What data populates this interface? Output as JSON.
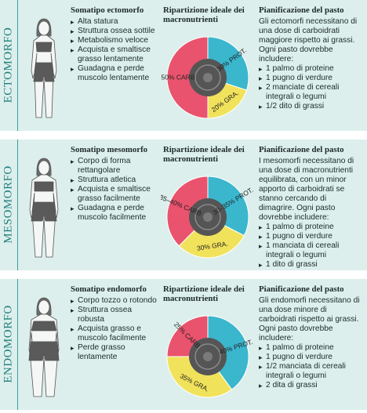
{
  "rows": [
    {
      "side_label": "ECTOMORFO",
      "type_title": "Somatipo ectomorfo",
      "type_bullets": [
        "Alta statura",
        "Struttura ossea sottile",
        "Metabolismo veloce",
        "Acquista e smaltisce grasso lentamente",
        "Guadagna e perde muscolo lentamente"
      ],
      "pie_title": "Ripartizione ideale dei macronutrienti",
      "pie": [
        {
          "label": "30% PROT.",
          "value": 30,
          "color": "#3ab6cd"
        },
        {
          "label": "20% GRA.",
          "value": 20,
          "color": "#f1e25b"
        },
        {
          "label": "50% CARB",
          "value": 50,
          "color": "#e9536d"
        }
      ],
      "plan_title": "Pianificazione del pasto",
      "plan_text": "Gli ectomorfi necessitano di una dose di carboidrati maggiore rispetto ai grassi. Ogni pasto dovrebbe includere:",
      "plan_bullets": [
        "1 palmo di proteine",
        "1 pugno di verdure",
        "2 manciate di cereali integrali o legumi",
        "1/2 dito di grassi"
      ]
    },
    {
      "side_label": "MESOMORFO",
      "type_title": "Somatipo mesomorfo",
      "type_bullets": [
        "Corpo di forma rettangolare",
        "Struttura atletica",
        "Acquista e smaltisce grasso facilmente",
        "Guadagna e perde muscolo facilmente"
      ],
      "pie_title": "Ripartizione ideale dei macronutrienti",
      "pie": [
        {
          "label": "30–35% PROT.",
          "value": 32.5,
          "color": "#3ab6cd"
        },
        {
          "label": "30% GRA.",
          "value": 30,
          "color": "#f1e25b"
        },
        {
          "label": "35–40% CARB",
          "value": 37.5,
          "color": "#e9536d"
        }
      ],
      "plan_title": "Pianificazione del pasto",
      "plan_text": "I mesomorfi necessitano di una dose di macronutrienti equilibrata, con un minor apporto di carboidrati se stanno cercando di dimagrire. Ogni pasto dovrebbe includere:",
      "plan_bullets": [
        "1 palmo di proteine",
        "1 pugno di verdure",
        "1 manciata di cereali integrali o legumi",
        "1 dito di grassi"
      ]
    },
    {
      "side_label": "ENDOMORFO",
      "type_title": "Somatipo endomorfo",
      "type_bullets": [
        "Corpo tozzo o rotondo",
        "Struttura ossea robusta",
        "Acquista grasso e muscolo facilmente",
        "Perde grasso lentamente"
      ],
      "pie_title": "Ripartizione ideale dei macronutrienti",
      "pie": [
        {
          "label": "40% PROT.",
          "value": 40,
          "color": "#3ab6cd"
        },
        {
          "label": "35% GRA.",
          "value": 35,
          "color": "#f1e25b"
        },
        {
          "label": "25% CARB",
          "value": 25,
          "color": "#e9536d"
        }
      ],
      "plan_title": "Pianificazione del pasto",
      "plan_text": "Gli endomorfi necessitano di una dose minore di carboidrati rispetto ai grassi. Ogni pasto dovrebbe includere:",
      "plan_bullets": [
        "1 palmo di proteine",
        "1 pugno di verdure",
        "1/2 manciata di cereali integrali o legumi",
        "2 dita di grassi"
      ]
    }
  ]
}
